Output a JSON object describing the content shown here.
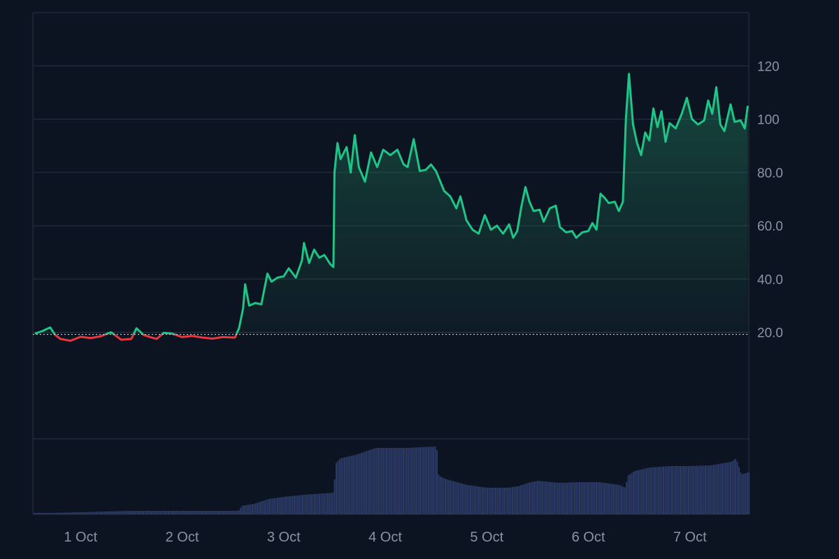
{
  "colors": {
    "background": "#0d1421",
    "grid": "#2a3346",
    "axis_text": "#8a93a6",
    "up_line": "#1fc587",
    "down_line": "#e8373d",
    "area_top": "#1d6f55",
    "volume_bar": "#2c3a66",
    "baseline": "#c8ccd6"
  },
  "chart_data": [
    {
      "type": "line",
      "title": "",
      "xlabel": "",
      "ylabel": "",
      "baseline": 19.2,
      "ylim": [
        -20,
        140
      ],
      "yticks": [
        20,
        40,
        60,
        80,
        100,
        120
      ],
      "ytick_labels": [
        "20.0",
        "40.0",
        "60.0",
        "80.0",
        "100",
        "120"
      ],
      "xticks": [
        "1 Oct",
        "2 Oct",
        "3 Oct",
        "4 Oct",
        "5 Oct",
        "6 Oct",
        "7 Oct"
      ],
      "x_range_days": [
        0.53,
        7.58
      ],
      "grid": true,
      "points": [
        [
          0.55,
          19.5
        ],
        [
          0.62,
          20.4
        ],
        [
          0.7,
          21.8
        ],
        [
          0.75,
          19.0
        ],
        [
          0.8,
          17.5
        ],
        [
          0.9,
          16.8
        ],
        [
          1.0,
          18.3
        ],
        [
          1.1,
          17.8
        ],
        [
          1.2,
          18.5
        ],
        [
          1.3,
          20.0
        ],
        [
          1.4,
          17.2
        ],
        [
          1.5,
          17.5
        ],
        [
          1.55,
          21.5
        ],
        [
          1.62,
          19.0
        ],
        [
          1.7,
          18.0
        ],
        [
          1.75,
          17.5
        ],
        [
          1.82,
          19.8
        ],
        [
          1.9,
          19.5
        ],
        [
          2.0,
          18.2
        ],
        [
          2.1,
          18.6
        ],
        [
          2.2,
          18.0
        ],
        [
          2.3,
          17.6
        ],
        [
          2.4,
          18.2
        ],
        [
          2.52,
          18.0
        ],
        [
          2.56,
          21.5
        ],
        [
          2.6,
          29.0
        ],
        [
          2.62,
          38.0
        ],
        [
          2.66,
          30.0
        ],
        [
          2.72,
          31.0
        ],
        [
          2.78,
          30.5
        ],
        [
          2.84,
          42.0
        ],
        [
          2.88,
          39.0
        ],
        [
          2.94,
          40.5
        ],
        [
          3.0,
          41.0
        ],
        [
          3.05,
          44.0
        ],
        [
          3.12,
          40.5
        ],
        [
          3.18,
          47.0
        ],
        [
          3.2,
          53.5
        ],
        [
          3.25,
          46.0
        ],
        [
          3.3,
          51.0
        ],
        [
          3.35,
          48.0
        ],
        [
          3.4,
          49.0
        ],
        [
          3.46,
          45.5
        ],
        [
          3.49,
          44.5
        ],
        [
          3.5,
          80.0
        ],
        [
          3.53,
          91.0
        ],
        [
          3.56,
          85.0
        ],
        [
          3.62,
          89.5
        ],
        [
          3.66,
          80.0
        ],
        [
          3.7,
          94.0
        ],
        [
          3.74,
          82.0
        ],
        [
          3.8,
          76.5
        ],
        [
          3.86,
          87.5
        ],
        [
          3.92,
          82.0
        ],
        [
          3.98,
          88.5
        ],
        [
          4.05,
          86.5
        ],
        [
          4.12,
          88.5
        ],
        [
          4.18,
          83.0
        ],
        [
          4.22,
          82.0
        ],
        [
          4.28,
          92.5
        ],
        [
          4.34,
          80.5
        ],
        [
          4.4,
          81.0
        ],
        [
          4.45,
          83.0
        ],
        [
          4.5,
          80.5
        ],
        [
          4.58,
          73.0
        ],
        [
          4.64,
          71.0
        ],
        [
          4.7,
          66.5
        ],
        [
          4.74,
          71.0
        ],
        [
          4.8,
          62.0
        ],
        [
          4.86,
          58.5
        ],
        [
          4.92,
          57.0
        ],
        [
          4.98,
          64.0
        ],
        [
          5.04,
          58.5
        ],
        [
          5.1,
          60.0
        ],
        [
          5.16,
          57.0
        ],
        [
          5.22,
          60.5
        ],
        [
          5.26,
          55.5
        ],
        [
          5.3,
          58.0
        ],
        [
          5.34,
          67.0
        ],
        [
          5.38,
          74.5
        ],
        [
          5.42,
          69.0
        ],
        [
          5.46,
          65.5
        ],
        [
          5.52,
          66.0
        ],
        [
          5.56,
          61.5
        ],
        [
          5.62,
          66.5
        ],
        [
          5.68,
          67.5
        ],
        [
          5.72,
          59.5
        ],
        [
          5.78,
          57.5
        ],
        [
          5.84,
          58.0
        ],
        [
          5.88,
          55.5
        ],
        [
          5.94,
          57.5
        ],
        [
          6.0,
          58.0
        ],
        [
          6.04,
          61.0
        ],
        [
          6.08,
          58.5
        ],
        [
          6.12,
          72.0
        ],
        [
          6.16,
          70.5
        ],
        [
          6.2,
          68.5
        ],
        [
          6.26,
          69.0
        ],
        [
          6.3,
          65.5
        ],
        [
          6.34,
          69.0
        ],
        [
          6.37,
          100.0
        ],
        [
          6.4,
          117.0
        ],
        [
          6.44,
          98.0
        ],
        [
          6.48,
          91.0
        ],
        [
          6.52,
          86.5
        ],
        [
          6.56,
          95.0
        ],
        [
          6.6,
          92.0
        ],
        [
          6.64,
          104.0
        ],
        [
          6.68,
          97.0
        ],
        [
          6.72,
          103.0
        ],
        [
          6.76,
          91.5
        ],
        [
          6.8,
          98.5
        ],
        [
          6.86,
          96.5
        ],
        [
          6.92,
          102.0
        ],
        [
          6.97,
          108.0
        ],
        [
          7.02,
          100.0
        ],
        [
          7.08,
          98.0
        ],
        [
          7.14,
          99.5
        ],
        [
          7.18,
          107.0
        ],
        [
          7.22,
          102.0
        ],
        [
          7.26,
          112.0
        ],
        [
          7.3,
          98.0
        ],
        [
          7.34,
          95.5
        ],
        [
          7.4,
          105.5
        ],
        [
          7.44,
          99.0
        ],
        [
          7.5,
          99.5
        ],
        [
          7.54,
          96.5
        ],
        [
          7.57,
          105.0
        ]
      ]
    },
    {
      "type": "bar",
      "title": "",
      "xlabel": "",
      "ylabel": "",
      "ylim": [
        0,
        100
      ],
      "grid": false,
      "points": [
        [
          0.55,
          2
        ],
        [
          0.7,
          2
        ],
        [
          1.0,
          3
        ],
        [
          1.5,
          5
        ],
        [
          2.0,
          5
        ],
        [
          2.5,
          5
        ],
        [
          2.55,
          5
        ],
        [
          2.58,
          12
        ],
        [
          2.7,
          15
        ],
        [
          2.85,
          22
        ],
        [
          3.0,
          25
        ],
        [
          3.2,
          28
        ],
        [
          3.4,
          30
        ],
        [
          3.49,
          31
        ],
        [
          3.5,
          72
        ],
        [
          3.55,
          80
        ],
        [
          3.7,
          85
        ],
        [
          3.9,
          95
        ],
        [
          4.2,
          95
        ],
        [
          4.5,
          97
        ],
        [
          4.52,
          55
        ],
        [
          4.6,
          50
        ],
        [
          4.8,
          42
        ],
        [
          5.0,
          38
        ],
        [
          5.2,
          38
        ],
        [
          5.3,
          40
        ],
        [
          5.4,
          45
        ],
        [
          5.5,
          48
        ],
        [
          5.7,
          45
        ],
        [
          5.9,
          46
        ],
        [
          6.1,
          46
        ],
        [
          6.3,
          42
        ],
        [
          6.36,
          38
        ],
        [
          6.38,
          55
        ],
        [
          6.45,
          62
        ],
        [
          6.6,
          67
        ],
        [
          6.8,
          69
        ],
        [
          7.0,
          69
        ],
        [
          7.2,
          70
        ],
        [
          7.4,
          75
        ],
        [
          7.45,
          80
        ],
        [
          7.5,
          57
        ],
        [
          7.57,
          60
        ]
      ]
    }
  ]
}
